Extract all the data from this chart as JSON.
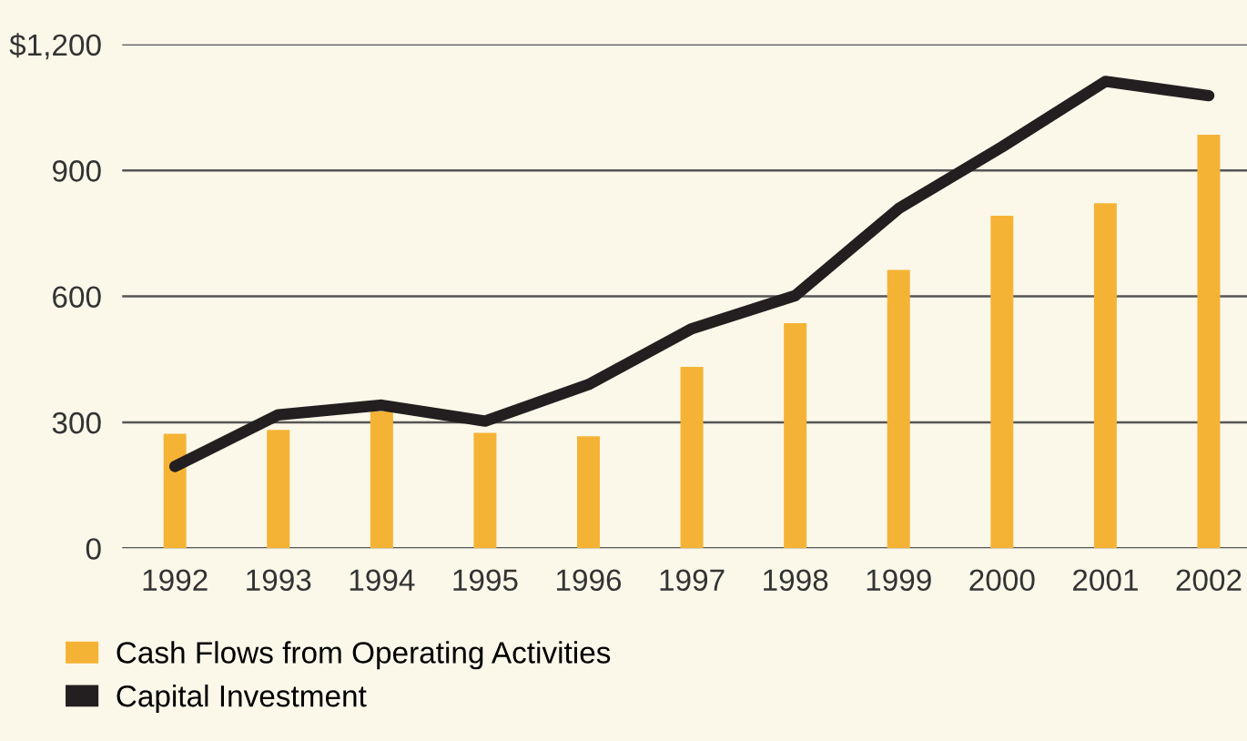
{
  "chart_data": {
    "type": "bar",
    "categories": [
      "1992",
      "1993",
      "1994",
      "1995",
      "1996",
      "1997",
      "1998",
      "1999",
      "2000",
      "2001",
      "2002"
    ],
    "series": [
      {
        "name": "Cash Flows from Operating Activities",
        "color": "#f5b335",
        "values": [
          273,
          282,
          326,
          275,
          267,
          432,
          536,
          663,
          792,
          822,
          985
        ]
      },
      {
        "name": "Capital Investment",
        "type": "line",
        "color": "#231f20",
        "values": [
          195,
          318,
          341,
          303,
          390,
          523,
          602,
          809,
          956,
          1112,
          1078
        ]
      }
    ],
    "ylim": [
      0,
      1200
    ],
    "yticks": [
      0,
      300,
      600,
      900,
      {
        "value": 1200,
        "label": "$1,200"
      }
    ],
    "grid": "y",
    "legend": "bottom left"
  }
}
